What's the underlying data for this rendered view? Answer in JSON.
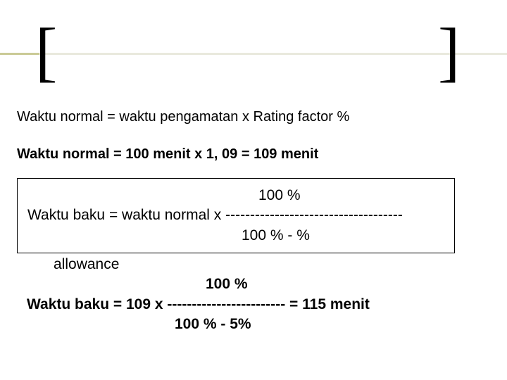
{
  "bracket": {
    "left": "[",
    "right": "]",
    "fontsize": 94
  },
  "formula_text": "Waktu normal = waktu pengamatan x Rating factor %",
  "calc_text": "Waktu normal = 100 menit x 1, 09 = 109 menit",
  "box": {
    "numerator": "100 %",
    "line": "Waktu baku = waktu normal x ------------------------------------",
    "denominator": "100 %  -  %"
  },
  "below": {
    "allowance": "allowance",
    "numerator": "100 %",
    "line": "Waktu baku = 109 x ------------------------ = 115 menit",
    "denominator": "100 %  -  5%"
  },
  "colors": {
    "hr_dark": "#caca96",
    "hr_light": "#e9e9dd",
    "text": "#000000",
    "bg": "#ffffff"
  }
}
